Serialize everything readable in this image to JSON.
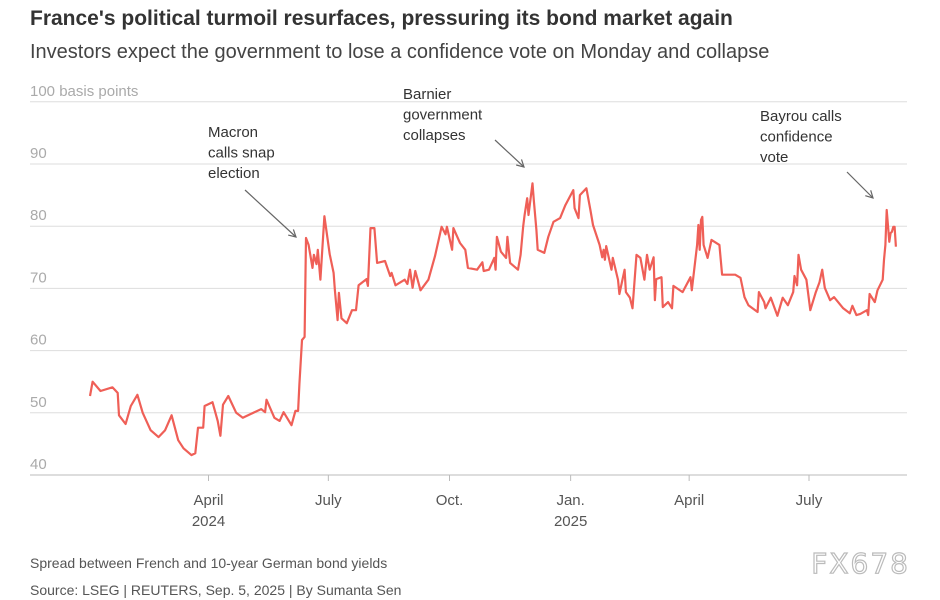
{
  "title": "France's political turmoil resurfaces, pressuring its bond market again",
  "subtitle": "Investors expect the government to lose a confidence vote on Monday and collapse",
  "footer": {
    "note": "Spread between French and 10-year German bond yields",
    "source": "Source: LSEG | REUTERS, Sep. 5, 2025 | By Sumanta Sen"
  },
  "watermark": "FX678",
  "chart_data": {
    "type": "line",
    "title": "",
    "ylabel": "100 basis points",
    "ylim": [
      40,
      100
    ],
    "yticks": [
      {
        "v": 100,
        "label": "100 basis points"
      },
      {
        "v": 90,
        "label": "90"
      },
      {
        "v": 80,
        "label": "80"
      },
      {
        "v": 70,
        "label": "70"
      },
      {
        "v": 60,
        "label": "60"
      },
      {
        "v": 50,
        "label": "50"
      },
      {
        "v": 40,
        "label": "40"
      }
    ],
    "xlim": [
      "2024-01-02",
      "2025-09-05"
    ],
    "xticks": [
      {
        "date": "2024-04-01",
        "label": "April",
        "sub": "2024"
      },
      {
        "date": "2024-07-01",
        "label": "July",
        "sub": ""
      },
      {
        "date": "2024-10-01",
        "label": "Oct.",
        "sub": ""
      },
      {
        "date": "2025-01-01",
        "label": "Jan.",
        "sub": "2025"
      },
      {
        "date": "2025-04-01",
        "label": "April",
        "sub": ""
      },
      {
        "date": "2025-07-01",
        "label": "July",
        "sub": ""
      }
    ],
    "grid": true,
    "line_color": "#ef5f57",
    "annotations": [
      {
        "date": "2024-06-12",
        "lines": [
          "Macron",
          "calls snap",
          "election"
        ]
      },
      {
        "date": "2024-12-04",
        "lines": [
          "Barnier",
          "government",
          "collapses"
        ]
      },
      {
        "date": "2025-08-25",
        "lines": [
          "Bayrou calls",
          "confidence",
          "vote"
        ]
      }
    ],
    "series": [
      {
        "points": [
          [
            "2024-01-02",
            52.7
          ],
          [
            "2024-01-04",
            55.0
          ],
          [
            "2024-01-10",
            53.5
          ],
          [
            "2024-01-19",
            54.1
          ],
          [
            "2024-01-23",
            53.2
          ],
          [
            "2024-01-24",
            49.6
          ],
          [
            "2024-01-29",
            48.2
          ],
          [
            "2024-02-02",
            51.1
          ],
          [
            "2024-02-07",
            52.9
          ],
          [
            "2024-02-11",
            50.0
          ],
          [
            "2024-02-17",
            47.2
          ],
          [
            "2024-02-23",
            46.1
          ],
          [
            "2024-02-28",
            47.2
          ],
          [
            "2024-03-04",
            49.6
          ],
          [
            "2024-03-09",
            45.6
          ],
          [
            "2024-03-13",
            44.3
          ],
          [
            "2024-03-19",
            43.2
          ],
          [
            "2024-03-22",
            43.5
          ],
          [
            "2024-03-24",
            47.6
          ],
          [
            "2024-03-28",
            47.6
          ],
          [
            "2024-03-29",
            51.1
          ],
          [
            "2024-04-04",
            51.7
          ],
          [
            "2024-04-08",
            48.7
          ],
          [
            "2024-04-10",
            46.3
          ],
          [
            "2024-04-12",
            51.3
          ],
          [
            "2024-04-16",
            52.7
          ],
          [
            "2024-04-22",
            50.0
          ],
          [
            "2024-04-27",
            49.2
          ],
          [
            "2024-05-03",
            49.8
          ],
          [
            "2024-05-11",
            50.6
          ],
          [
            "2024-05-14",
            50.1
          ],
          [
            "2024-05-15",
            52.1
          ],
          [
            "2024-05-21",
            49.2
          ],
          [
            "2024-05-25",
            48.7
          ],
          [
            "2024-05-28",
            50.1
          ],
          [
            "2024-06-03",
            48.0
          ],
          [
            "2024-06-06",
            50.3
          ],
          [
            "2024-06-08",
            50.3
          ],
          [
            "2024-06-09",
            54.6
          ],
          [
            "2024-06-11",
            61.7
          ],
          [
            "2024-06-13",
            62.2
          ],
          [
            "2024-06-14",
            78.1
          ],
          [
            "2024-06-16",
            77.0
          ],
          [
            "2024-06-19",
            73.3
          ],
          [
            "2024-06-20",
            75.4
          ],
          [
            "2024-06-22",
            73.9
          ],
          [
            "2024-06-23",
            76.2
          ],
          [
            "2024-06-25",
            71.4
          ],
          [
            "2024-06-28",
            81.6
          ],
          [
            "2024-07-02",
            75.5
          ],
          [
            "2024-07-05",
            72.5
          ],
          [
            "2024-07-06",
            69.7
          ],
          [
            "2024-07-08",
            64.9
          ],
          [
            "2024-07-09",
            69.3
          ],
          [
            "2024-07-11",
            65.2
          ],
          [
            "2024-07-15",
            64.4
          ],
          [
            "2024-07-19",
            66.5
          ],
          [
            "2024-07-22",
            66.5
          ],
          [
            "2024-07-24",
            70.5
          ],
          [
            "2024-07-30",
            71.5
          ],
          [
            "2024-07-31",
            70.4
          ],
          [
            "2024-08-02",
            79.7
          ],
          [
            "2024-08-05",
            79.7
          ],
          [
            "2024-08-07",
            74.1
          ],
          [
            "2024-08-13",
            74.4
          ],
          [
            "2024-08-17",
            72.0
          ],
          [
            "2024-08-18",
            72.5
          ],
          [
            "2024-08-21",
            70.5
          ],
          [
            "2024-08-28",
            71.4
          ],
          [
            "2024-08-30",
            70.7
          ],
          [
            "2024-09-01",
            73.0
          ],
          [
            "2024-09-03",
            70.1
          ],
          [
            "2024-09-05",
            72.8
          ],
          [
            "2024-09-09",
            69.7
          ],
          [
            "2024-09-15",
            71.4
          ],
          [
            "2024-09-20",
            75.2
          ],
          [
            "2024-09-25",
            79.9
          ],
          [
            "2024-09-28",
            78.7
          ],
          [
            "2024-09-29",
            79.9
          ],
          [
            "2024-10-03",
            76.2
          ],
          [
            "2024-10-04",
            79.7
          ],
          [
            "2024-10-09",
            77.3
          ],
          [
            "2024-10-13",
            76.2
          ],
          [
            "2024-10-15",
            73.3
          ],
          [
            "2024-10-22",
            73.0
          ],
          [
            "2024-10-26",
            74.2
          ],
          [
            "2024-10-27",
            72.8
          ],
          [
            "2024-10-31",
            73.0
          ],
          [
            "2024-11-04",
            74.9
          ],
          [
            "2024-11-05",
            73.0
          ],
          [
            "2024-11-06",
            78.3
          ],
          [
            "2024-11-09",
            75.9
          ],
          [
            "2024-11-13",
            74.9
          ],
          [
            "2024-11-14",
            78.3
          ],
          [
            "2024-11-16",
            74.1
          ],
          [
            "2024-11-22",
            73.0
          ],
          [
            "2024-11-24",
            75.4
          ],
          [
            "2024-11-26",
            80.0
          ],
          [
            "2024-11-27",
            81.8
          ],
          [
            "2024-11-29",
            84.5
          ],
          [
            "2024-11-30",
            81.8
          ],
          [
            "2024-12-03",
            86.9
          ],
          [
            "2024-12-04",
            84.2
          ],
          [
            "2024-12-06",
            79.4
          ],
          [
            "2024-12-07",
            76.2
          ],
          [
            "2024-12-12",
            75.7
          ],
          [
            "2024-12-15",
            78.3
          ],
          [
            "2024-12-19",
            80.7
          ],
          [
            "2024-12-24",
            81.3
          ],
          [
            "2024-12-28",
            83.4
          ],
          [
            "2025-01-03",
            85.8
          ],
          [
            "2025-01-04",
            82.9
          ],
          [
            "2025-01-07",
            81.3
          ],
          [
            "2025-01-08",
            85.0
          ],
          [
            "2025-01-13",
            86.1
          ],
          [
            "2025-01-16",
            82.6
          ],
          [
            "2025-01-18",
            80.2
          ],
          [
            "2025-01-23",
            77.0
          ],
          [
            "2025-01-25",
            75.0
          ],
          [
            "2025-01-26",
            76.2
          ],
          [
            "2025-01-27",
            74.6
          ],
          [
            "2025-01-28",
            76.8
          ],
          [
            "2025-02-01",
            73.0
          ],
          [
            "2025-02-02",
            74.9
          ],
          [
            "2025-02-06",
            71.4
          ],
          [
            "2025-02-07",
            69.1
          ],
          [
            "2025-02-11",
            73.0
          ],
          [
            "2025-02-12",
            69.4
          ],
          [
            "2025-02-15",
            68.5
          ],
          [
            "2025-02-17",
            66.8
          ],
          [
            "2025-02-20",
            75.4
          ],
          [
            "2025-02-23",
            74.9
          ],
          [
            "2025-02-26",
            71.4
          ],
          [
            "2025-02-28",
            75.4
          ],
          [
            "2025-03-02",
            73.0
          ],
          [
            "2025-03-05",
            75.0
          ],
          [
            "2025-03-06",
            68.1
          ],
          [
            "2025-03-07",
            71.5
          ],
          [
            "2025-03-11",
            71.8
          ],
          [
            "2025-03-12",
            67.0
          ],
          [
            "2025-03-16",
            67.8
          ],
          [
            "2025-03-19",
            66.8
          ],
          [
            "2025-03-20",
            70.4
          ],
          [
            "2025-03-27",
            69.4
          ],
          [
            "2025-04-02",
            71.8
          ],
          [
            "2025-04-03",
            69.7
          ],
          [
            "2025-04-07",
            77.0
          ],
          [
            "2025-04-08",
            80.2
          ],
          [
            "2025-04-09",
            76.2
          ],
          [
            "2025-04-10",
            81.0
          ],
          [
            "2025-04-11",
            81.5
          ],
          [
            "2025-04-12",
            77.0
          ],
          [
            "2025-04-15",
            74.9
          ],
          [
            "2025-04-18",
            77.8
          ],
          [
            "2025-04-24",
            77.0
          ],
          [
            "2025-04-26",
            72.2
          ],
          [
            "2025-05-06",
            72.2
          ],
          [
            "2025-05-10",
            71.7
          ],
          [
            "2025-05-13",
            68.6
          ],
          [
            "2025-05-16",
            67.3
          ],
          [
            "2025-05-23",
            66.2
          ],
          [
            "2025-05-24",
            69.4
          ],
          [
            "2025-05-28",
            67.8
          ],
          [
            "2025-05-29",
            66.8
          ],
          [
            "2025-06-02",
            68.5
          ],
          [
            "2025-06-07",
            65.6
          ],
          [
            "2025-06-11",
            68.5
          ],
          [
            "2025-06-15",
            67.3
          ],
          [
            "2025-06-19",
            69.4
          ],
          [
            "2025-06-20",
            72.0
          ],
          [
            "2025-06-22",
            70.5
          ],
          [
            "2025-06-23",
            75.4
          ],
          [
            "2025-06-25",
            73.0
          ],
          [
            "2025-06-29",
            71.4
          ],
          [
            "2025-07-02",
            66.5
          ],
          [
            "2025-07-06",
            69.3
          ],
          [
            "2025-07-09",
            71.0
          ],
          [
            "2025-07-11",
            73.0
          ],
          [
            "2025-07-13",
            70.1
          ],
          [
            "2025-07-17",
            68.1
          ],
          [
            "2025-07-20",
            68.6
          ],
          [
            "2025-07-27",
            66.8
          ],
          [
            "2025-08-01",
            66.0
          ],
          [
            "2025-08-03",
            67.2
          ],
          [
            "2025-08-06",
            65.7
          ],
          [
            "2025-08-09",
            65.9
          ],
          [
            "2025-08-14",
            66.5
          ],
          [
            "2025-08-15",
            65.7
          ],
          [
            "2025-08-16",
            69.1
          ],
          [
            "2025-08-20",
            67.8
          ],
          [
            "2025-08-22",
            69.7
          ],
          [
            "2025-08-26",
            71.4
          ],
          [
            "2025-08-27",
            74.6
          ],
          [
            "2025-08-28",
            77.0
          ],
          [
            "2025-08-29",
            82.6
          ],
          [
            "2025-08-31",
            77.5
          ],
          [
            "2025-09-01",
            78.9
          ],
          [
            "2025-09-02",
            79.1
          ],
          [
            "2025-09-03",
            79.9
          ],
          [
            "2025-09-04",
            79.9
          ],
          [
            "2025-09-05",
            76.7
          ]
        ]
      }
    ]
  }
}
